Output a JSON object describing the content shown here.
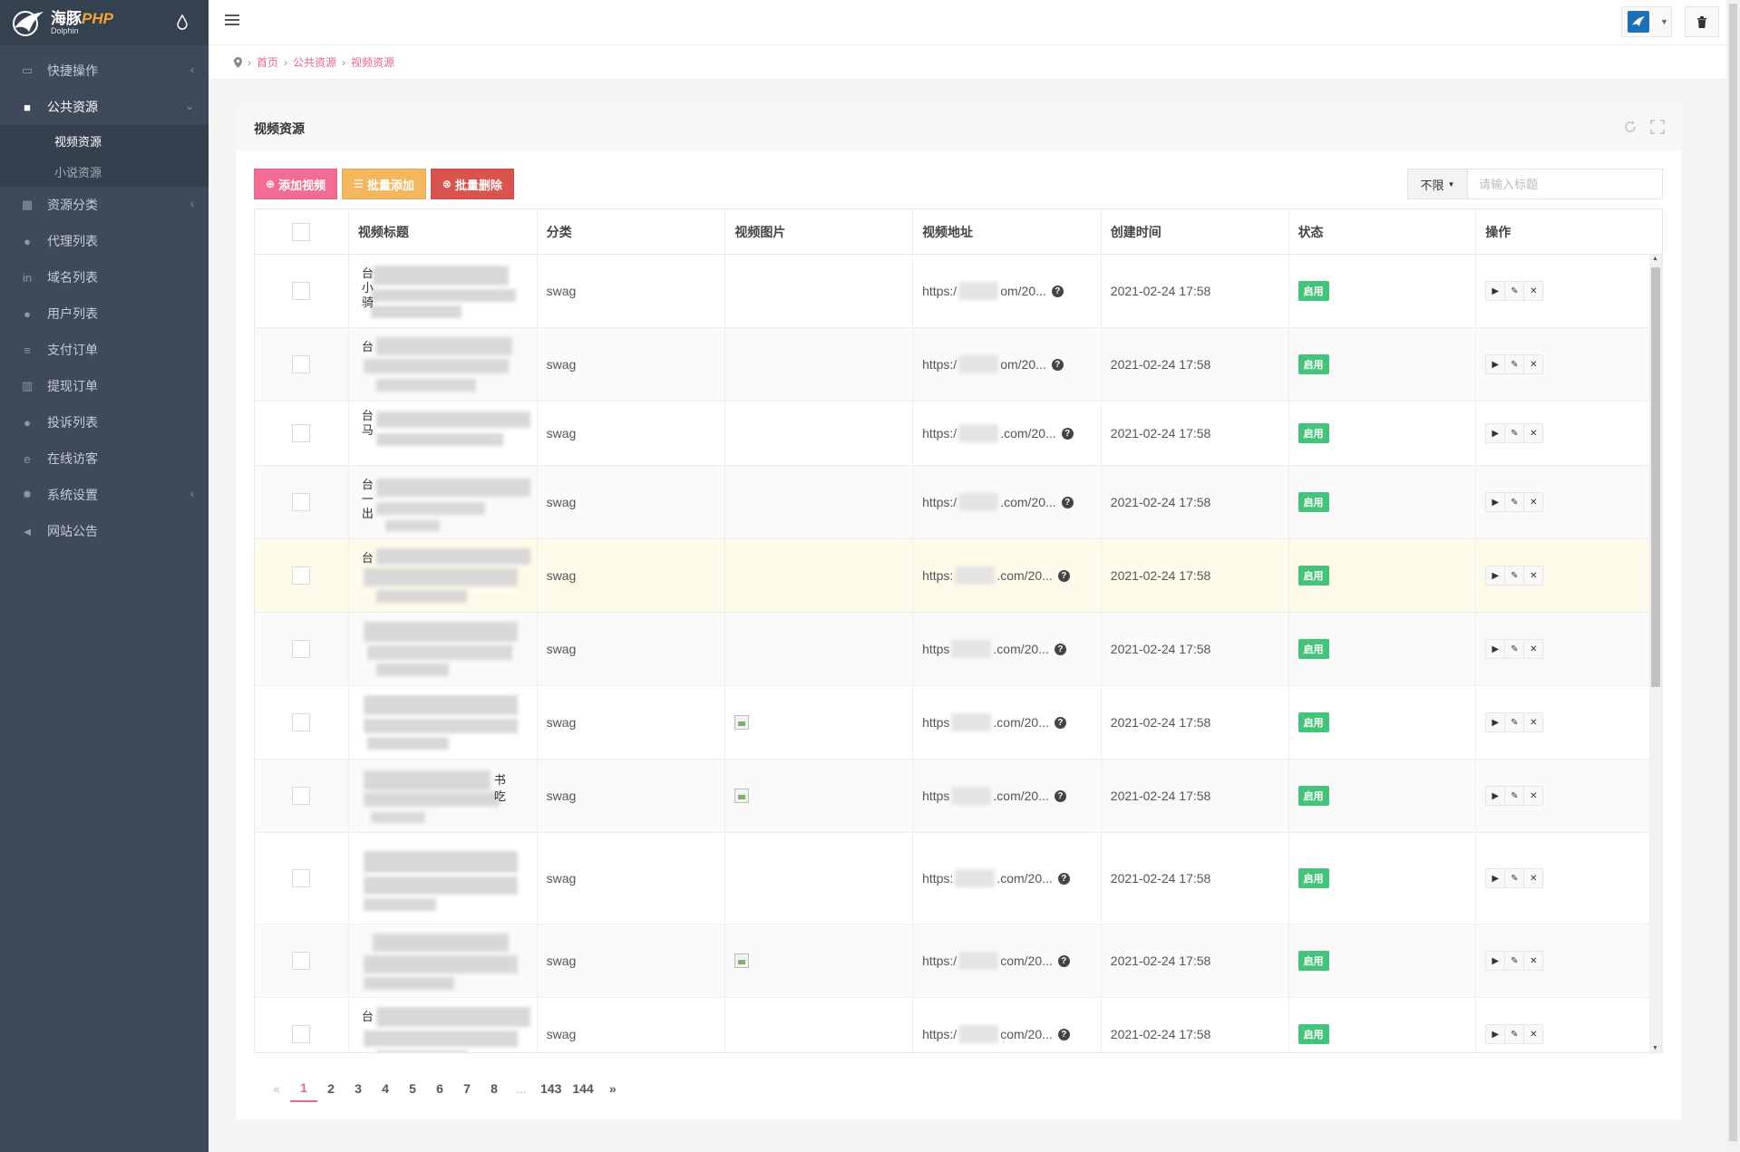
{
  "brand": {
    "name": "海豚",
    "name_suffix": "PHP",
    "sub": "Dolphin"
  },
  "sidebar": {
    "items": [
      {
        "label": "快捷操作",
        "icon": "folder-open-icon",
        "chevron": "‹"
      },
      {
        "label": "公共资源",
        "icon": "video-camera-icon",
        "chevron": "⌄",
        "open": true,
        "children": [
          {
            "label": "视频资源",
            "active": true
          },
          {
            "label": "小说资源"
          }
        ]
      },
      {
        "label": "资源分类",
        "icon": "th-large-icon",
        "chevron": "‹"
      },
      {
        "label": "代理列表",
        "icon": "users-icon"
      },
      {
        "label": "域名列表",
        "icon": "linkedin-icon"
      },
      {
        "label": "用户列表",
        "icon": "user-icon"
      },
      {
        "label": "支付订单",
        "icon": "database-icon"
      },
      {
        "label": "提现订单",
        "icon": "bank-icon"
      },
      {
        "label": "投诉列表",
        "icon": "exclamation-icon"
      },
      {
        "label": "在线访客",
        "icon": "internet-explorer-icon"
      },
      {
        "label": "系统设置",
        "icon": "gear-icon",
        "chevron": "‹"
      },
      {
        "label": "网站公告",
        "icon": "bullhorn-icon"
      }
    ]
  },
  "breadcrumb": [
    "首页",
    "公共资源",
    "视频资源"
  ],
  "block": {
    "title": "视频资源"
  },
  "toolbar": {
    "add_label": "添加视频",
    "batch_add_label": "批量添加",
    "batch_delete_label": "批量删除"
  },
  "search": {
    "filter_value": "不限",
    "placeholder": "请输入标题"
  },
  "table": {
    "columns": [
      "视频标题",
      "分类",
      "视频图片",
      "视频地址",
      "创建时间",
      "状态",
      "操作"
    ],
    "rows": [
      {
        "category": "swag",
        "url_start": "https:/",
        "url_end": "om/20...",
        "created": "2021-02-24 17:58",
        "status": "启用",
        "has_image": false,
        "title_chars": [
          "台",
          "小",
          "骑"
        ]
      },
      {
        "category": "swag",
        "url_start": "https:/",
        "url_end": "om/20...",
        "created": "2021-02-24 17:58",
        "status": "启用",
        "has_image": false,
        "title_chars": [
          "台"
        ]
      },
      {
        "category": "swag",
        "url_start": "https:/",
        "url_end": ".com/20...",
        "created": "2021-02-24 17:58",
        "status": "启用",
        "has_image": false,
        "title_chars": [
          "台",
          "马"
        ]
      },
      {
        "category": "swag",
        "url_start": "https:/",
        "url_end": ".com/20...",
        "created": "2021-02-24 17:58",
        "status": "启用",
        "has_image": false,
        "title_chars": [
          "台",
          "一",
          "出"
        ]
      },
      {
        "category": "swag",
        "url_start": "https:",
        "url_end": ".com/20...",
        "created": "2021-02-24 17:58",
        "status": "启用",
        "has_image": false,
        "title_chars": [
          "台"
        ]
      },
      {
        "category": "swag",
        "url_start": "https",
        "url_end": ".com/20...",
        "created": "2021-02-24 17:58",
        "status": "启用",
        "has_image": false,
        "title_chars": []
      },
      {
        "category": "swag",
        "url_start": "https",
        "url_end": ".com/20...",
        "created": "2021-02-24 17:58",
        "status": "启用",
        "has_image": true,
        "title_chars": []
      },
      {
        "category": "swag",
        "url_start": "https",
        "url_end": ".com/20...",
        "created": "2021-02-24 17:58",
        "status": "启用",
        "has_image": true,
        "title_chars": [
          "书",
          "吃"
        ]
      },
      {
        "category": "swag",
        "url_start": "https:",
        "url_end": ".com/20...",
        "created": "2021-02-24 17:58",
        "status": "启用",
        "has_image": false,
        "title_chars": []
      },
      {
        "category": "swag",
        "url_start": "https:/",
        "url_end": "com/20...",
        "created": "2021-02-24 17:58",
        "status": "启用",
        "has_image": true,
        "title_chars": []
      },
      {
        "category": "swag",
        "url_start": "https:/",
        "url_end": "com/20...",
        "created": "2021-02-24 17:58",
        "status": "启用",
        "has_image": false,
        "title_chars": [
          "台"
        ]
      }
    ]
  },
  "pagination": {
    "prev": "«",
    "pages": [
      "1",
      "2",
      "3",
      "4",
      "5",
      "6",
      "7",
      "8",
      "...",
      "143",
      "144"
    ],
    "current": "1",
    "next": "»"
  }
}
